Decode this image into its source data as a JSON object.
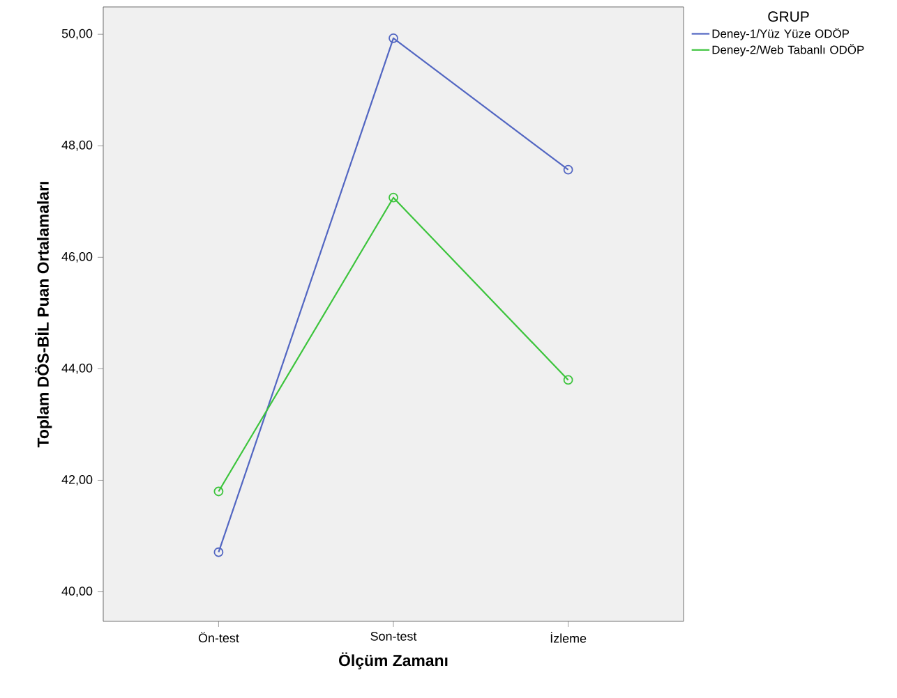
{
  "chart_data": {
    "type": "line",
    "xlabel": "Ölçüm Zamanı",
    "ylabel": "Toplam DÖS-BİL Puan Ortalamaları",
    "legend_title": "GRUP",
    "categories": [
      "Ön-test",
      "Son-test",
      "İzleme"
    ],
    "series": [
      {
        "name": "Deney-1/Yüz Yüze ODÖP",
        "color": "#5266c2",
        "values": [
          40.71,
          49.93,
          47.57
        ]
      },
      {
        "name": "Deney-2/Web Tabanlı ODÖP",
        "color": "#3cc43c",
        "values": [
          41.8,
          47.07,
          43.8
        ]
      }
    ],
    "ylim": [
      39.47,
      50.49
    ],
    "yticks": [
      {
        "value": 40,
        "label": "40,00"
      },
      {
        "value": 42,
        "label": "42,00"
      },
      {
        "value": 44,
        "label": "44,00"
      },
      {
        "value": 46,
        "label": "46,00"
      },
      {
        "value": 48,
        "label": "48,00"
      },
      {
        "value": 50,
        "label": "50,00"
      }
    ],
    "marker": "circle",
    "line_style": "solid",
    "legend": "top right",
    "grid": false
  }
}
